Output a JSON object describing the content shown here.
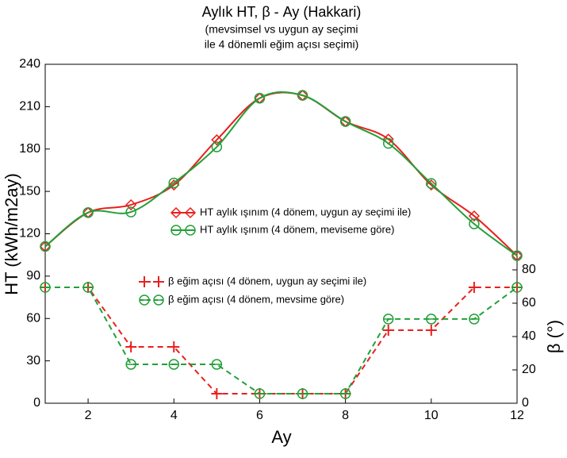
{
  "chart_data": {
    "type": "line",
    "title": "Aylık HT, β - Ay (Hakkari)",
    "subtitle": [
      "(mevsimsel vs uygun ay seçimi",
      "ile 4 dönemli eğim açısı seçimi)"
    ],
    "x_label": "Ay",
    "y_label": "HT (kWh/m2ay)",
    "y2_label": "β (°)",
    "x": [
      1,
      2,
      3,
      4,
      5,
      6,
      7,
      8,
      9,
      10,
      11,
      12
    ],
    "xlim": [
      1,
      12
    ],
    "xticks": [
      2,
      4,
      6,
      8,
      10,
      12
    ],
    "ylim": [
      0,
      240
    ],
    "yticks": [
      0,
      30,
      60,
      90,
      120,
      150,
      180,
      210,
      240
    ],
    "y2lim": [
      0,
      203.3
    ],
    "y2ticks": [
      0,
      20,
      40,
      60,
      80
    ],
    "series": [
      {
        "name": "HT aylık ışınım (4 dönem, uygun ay seçimi ile)",
        "color": "#e8201e",
        "marker": "diamond",
        "smooth": true,
        "values": [
          111,
          135,
          140.5,
          154.5,
          186.5,
          216,
          218,
          199.5,
          187,
          154.5,
          132.6,
          104.5
        ]
      },
      {
        "name": "HT aylık ışınım (4 dönem, meviseme göre)",
        "color": "#22a038",
        "marker": "circle",
        "smooth": true,
        "values": [
          111,
          135,
          135.4,
          156,
          181.5,
          216,
          218,
          199.5,
          184,
          155.6,
          127,
          104.5
        ]
      },
      {
        "name": "β eğim açısı (4 dönem, uygun ay seçimi ile)",
        "color": "#e8201e",
        "marker": "plus",
        "dashed": true,
        "axis": "y2",
        "values": [
          69.5,
          69.5,
          33.8,
          33.8,
          5.7,
          5.7,
          5.7,
          5.7,
          43.8,
          43.8,
          69.5,
          69.5
        ]
      },
      {
        "name": "β eğim açısı (4 dönem, mevsime göre)",
        "color": "#22a038",
        "marker": "circle-minus",
        "dashed": true,
        "axis": "y2",
        "values": [
          69.5,
          69.5,
          23.3,
          23.3,
          23.3,
          5.7,
          5.7,
          5.7,
          50.5,
          50.5,
          50.5,
          69.5
        ]
      }
    ]
  }
}
